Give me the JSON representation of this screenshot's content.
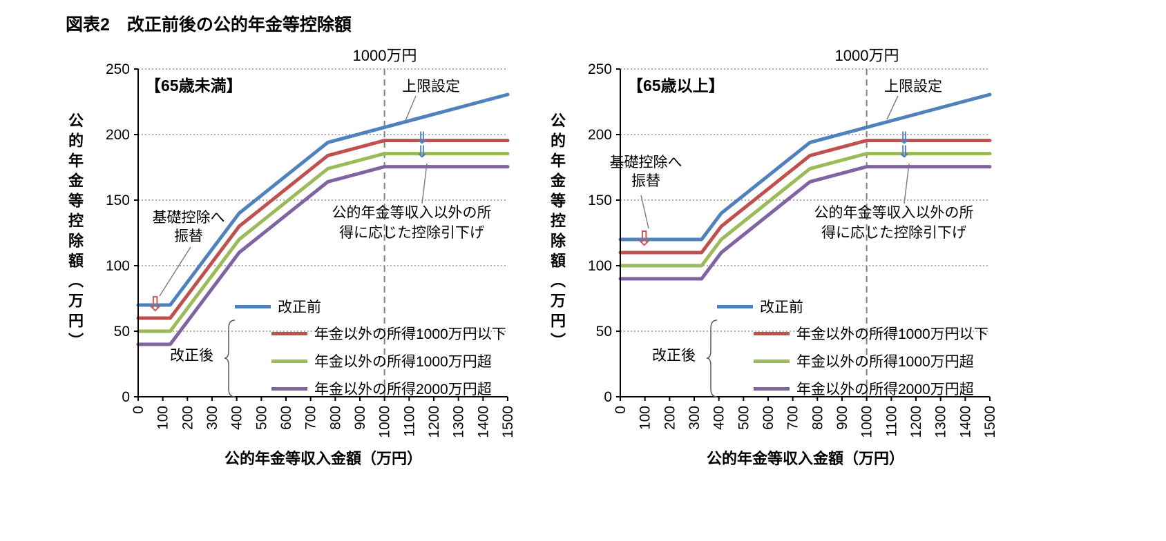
{
  "figure_title": "図表2　改正前後の公的年金等控除額",
  "icons": {
    "down_arrow_outline": "⇩",
    "down_arrow_double": "⇓"
  },
  "colors": {
    "red_arrow": "#cc5b5b",
    "blue_arrow": "#4f81bd",
    "gridline": "#7f7f7f",
    "axis": "#000000"
  },
  "chart_data": [
    {
      "type": "line",
      "title": "【65歳未満】",
      "xlabel": "公的年金等収入金額（万円）",
      "ylabel": "公的年金等控除額（万円）",
      "xlim": [
        0,
        1500
      ],
      "ylim": [
        0,
        250
      ],
      "xticks": [
        0,
        100,
        200,
        300,
        400,
        500,
        600,
        700,
        800,
        900,
        1000,
        1100,
        1200,
        1300,
        1400,
        1500
      ],
      "yticks": [
        0,
        50,
        100,
        150,
        200,
        250
      ],
      "grid": "horizontal-dotted",
      "legend_position": "inside-lower-right",
      "legend_group": "改正後",
      "refline": {
        "x": 1000,
        "label": "1000万円"
      },
      "annotations": {
        "cap": "上限設定",
        "transfer": [
          "基礎控除へ",
          "振替"
        ],
        "reduction": [
          "公的年金等収入以外の所",
          "得に応じた控除引下げ"
        ]
      },
      "series": [
        {
          "name": "改正前",
          "color": "#4F81BD",
          "points": [
            [
              0,
              70
            ],
            [
              130,
              70
            ],
            [
              410,
              140
            ],
            [
              770,
              194
            ],
            [
              1500,
              230.5
            ]
          ]
        },
        {
          "name": "年金以外の所得1000万円以下",
          "color": "#C0504D",
          "points": [
            [
              0,
              60
            ],
            [
              130,
              60
            ],
            [
              410,
              130
            ],
            [
              770,
              184
            ],
            [
              1000,
              195.5
            ],
            [
              1500,
              195.5
            ]
          ]
        },
        {
          "name": "年金以外の所得1000万円超",
          "color": "#9BBB59",
          "points": [
            [
              0,
              50
            ],
            [
              130,
              50
            ],
            [
              410,
              120
            ],
            [
              770,
              174
            ],
            [
              1000,
              185.5
            ],
            [
              1500,
              185.5
            ]
          ]
        },
        {
          "name": "年金以外の所得2000万円超",
          "color": "#8064A2",
          "points": [
            [
              0,
              40
            ],
            [
              130,
              40
            ],
            [
              410,
              110
            ],
            [
              770,
              164
            ],
            [
              1000,
              175.5
            ],
            [
              1500,
              175.5
            ]
          ]
        }
      ]
    },
    {
      "type": "line",
      "title": "【65歳以上】",
      "xlabel": "公的年金等収入金額（万円）",
      "ylabel": "公的年金等控除額（万円）",
      "xlim": [
        0,
        1500
      ],
      "ylim": [
        0,
        250
      ],
      "xticks": [
        0,
        100,
        200,
        300,
        400,
        500,
        600,
        700,
        800,
        900,
        1000,
        1100,
        1200,
        1300,
        1400,
        1500
      ],
      "yticks": [
        0,
        50,
        100,
        150,
        200,
        250
      ],
      "grid": "horizontal-dotted",
      "legend_position": "inside-lower-right",
      "legend_group": "改正後",
      "refline": {
        "x": 1000,
        "label": "1000万円"
      },
      "annotations": {
        "cap": "上限設定",
        "transfer": [
          "基礎控除へ",
          "振替"
        ],
        "reduction": [
          "公的年金等収入以外の所",
          "得に応じた控除引下げ"
        ]
      },
      "series": [
        {
          "name": "改正前",
          "color": "#4F81BD",
          "points": [
            [
              0,
              120
            ],
            [
              330,
              120
            ],
            [
              410,
              140
            ],
            [
              770,
              194
            ],
            [
              1500,
              230.5
            ]
          ]
        },
        {
          "name": "年金以外の所得1000万円以下",
          "color": "#C0504D",
          "points": [
            [
              0,
              110
            ],
            [
              330,
              110
            ],
            [
              410,
              130
            ],
            [
              770,
              184
            ],
            [
              1000,
              195.5
            ],
            [
              1500,
              195.5
            ]
          ]
        },
        {
          "name": "年金以外の所得1000万円超",
          "color": "#9BBB59",
          "points": [
            [
              0,
              100
            ],
            [
              330,
              100
            ],
            [
              410,
              120
            ],
            [
              770,
              174
            ],
            [
              1000,
              185.5
            ],
            [
              1500,
              185.5
            ]
          ]
        },
        {
          "name": "年金以外の所得2000万円超",
          "color": "#8064A2",
          "points": [
            [
              0,
              90
            ],
            [
              330,
              90
            ],
            [
              410,
              110
            ],
            [
              770,
              164
            ],
            [
              1000,
              175.5
            ],
            [
              1500,
              175.5
            ]
          ]
        }
      ]
    }
  ]
}
